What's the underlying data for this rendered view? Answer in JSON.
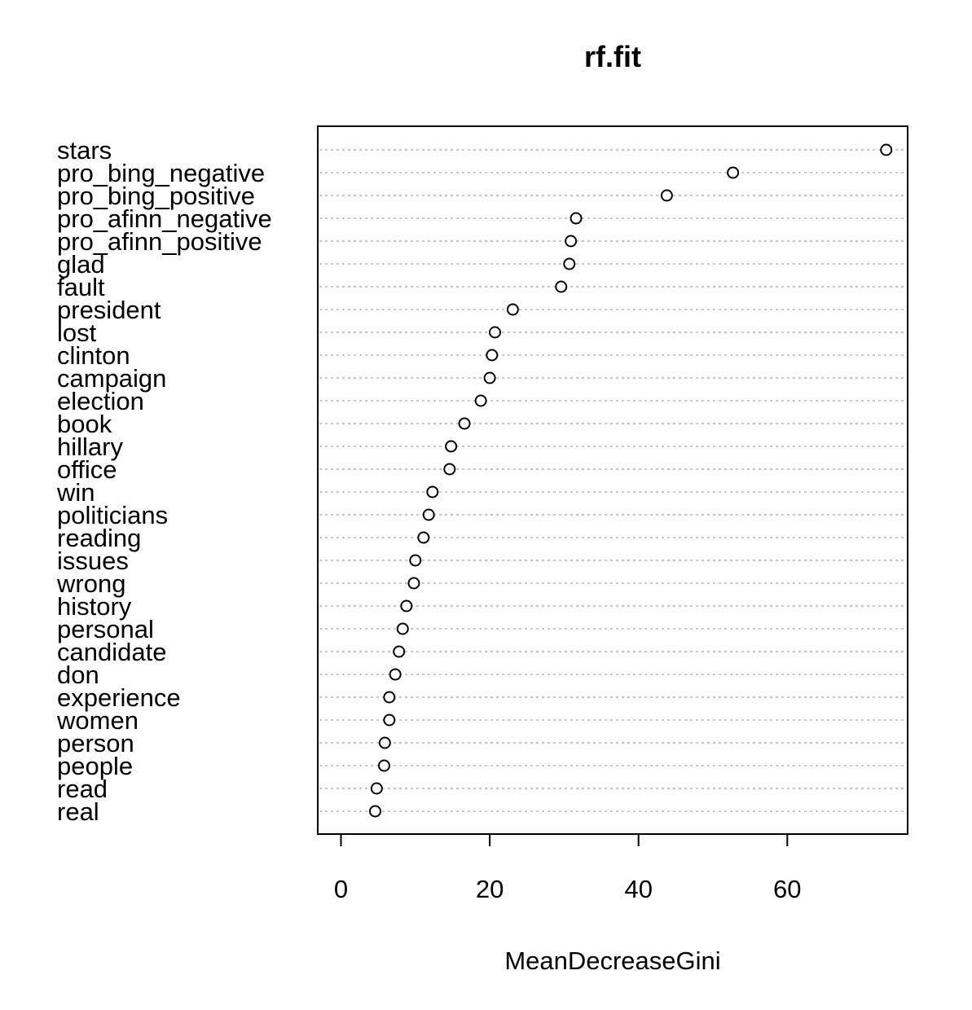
{
  "chart_data": {
    "type": "scatter",
    "title": "rf.fit",
    "xlabel": "MeanDecreaseGini",
    "ylabel": "",
    "xlim": [
      -3,
      76
    ],
    "xticks": [
      0,
      20,
      40,
      60
    ],
    "grid": "horizontal dashed",
    "categories": [
      "stars",
      "pro_bing_negative",
      "pro_bing_positive",
      "pro_afinn_negative",
      "pro_afinn_positive",
      "glad",
      "fault",
      "president",
      "lost",
      "clinton",
      "campaign",
      "election",
      "book",
      "hillary",
      "office",
      "win",
      "politicians",
      "reading",
      "issues",
      "wrong",
      "history",
      "personal",
      "candidate",
      "don",
      "experience",
      "women",
      "person",
      "people",
      "read",
      "real"
    ],
    "values": [
      73.3,
      52.7,
      43.8,
      31.6,
      30.9,
      30.7,
      29.6,
      23.1,
      20.7,
      20.3,
      20.0,
      18.8,
      16.6,
      14.8,
      14.6,
      12.3,
      11.8,
      11.1,
      10.0,
      9.8,
      8.8,
      8.3,
      7.8,
      7.3,
      6.5,
      6.5,
      5.9,
      5.8,
      4.8,
      4.6
    ]
  }
}
